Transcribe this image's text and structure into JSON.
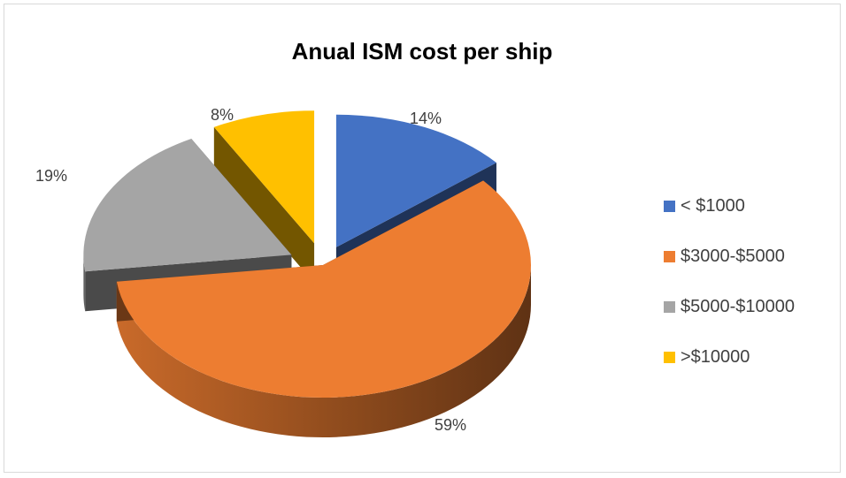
{
  "chart_data": {
    "type": "pie",
    "title": "Anual ISM cost per ship",
    "labels": [
      "< $1000",
      "$3000-$5000",
      "$5000-$10000",
      ">$10000"
    ],
    "values": [
      14,
      59,
      19,
      8
    ],
    "value_labels": [
      "14%",
      "59%",
      "19%",
      "8%"
    ],
    "colors": [
      "#4472c4",
      "#ed7d31",
      "#a5a5a5",
      "#ffc000"
    ],
    "style": "3d-exploded",
    "legend_position": "right"
  }
}
